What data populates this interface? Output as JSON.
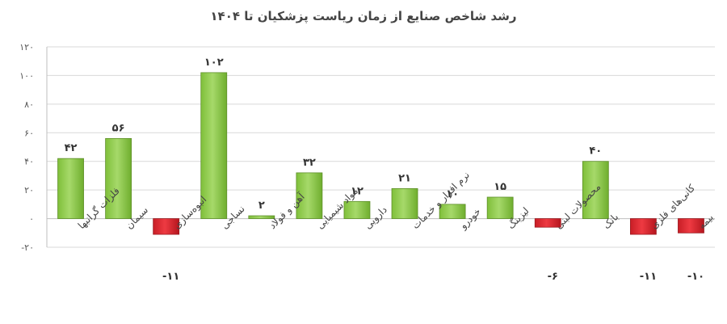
{
  "chart_data": {
    "type": "bar",
    "title": "رشد شاخص صنایع از زمان ریاست پزشکیان تا ۱۴۰۴",
    "categories": [
      "فلزات گرانبها",
      "سیمان",
      "انبوه‌سازی",
      "نساجی",
      "آهن و فولاد",
      "مواد شیمیایی",
      "دارویی",
      "نرم افزار و خدمات",
      "خودرو",
      "لیزینگ",
      "محصولات لبنی",
      "بانک",
      "کانی‌های فلزی",
      "بیمه"
    ],
    "values": [
      42,
      56,
      -11,
      102,
      2,
      32,
      12,
      21,
      10,
      15,
      -6,
      40,
      -11,
      -10
    ],
    "value_labels": [
      "۴۲",
      "۵۶",
      "-۱۱",
      "۱۰۲",
      "۲",
      "۳۲",
      "۱۲",
      "۲۱",
      "۱۰",
      "۱۵",
      "-۶",
      "۴۰",
      "-۱۱",
      "-۱۰"
    ],
    "yticks": [
      -20,
      0,
      20,
      40,
      60,
      80,
      100,
      120
    ],
    "ytick_labels": [
      "-۲۰",
      "۰",
      "۲۰",
      "۴۰",
      "۶۰",
      "۸۰",
      "۱۰۰",
      "۱۲۰"
    ],
    "ylim": [
      -20,
      120
    ],
    "xlabel": "",
    "ylabel": "",
    "grid": true,
    "colors": {
      "positive": "#92d050",
      "positive_edge": "#5e8f2a",
      "negative": "#e0262f",
      "negative_edge": "#9b1a20",
      "grid": "#d9d9d9"
    }
  }
}
